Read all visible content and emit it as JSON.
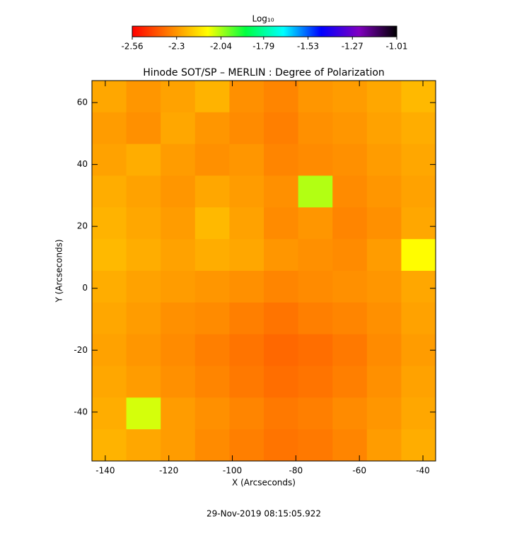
{
  "chart_data": {
    "type": "heatmap",
    "title": "Hinode SOT/SP – MERLIN : Degree of Polarization",
    "xlabel": "X (Arcseconds)",
    "ylabel": "Y (Arcseconds)",
    "footer": "29-Nov-2019 08:15:05.922",
    "colorbar_label": "Log₁₀",
    "colormap": [
      "#ff0000",
      "#ff8000",
      "#ffff00",
      "#00ff40",
      "#00ffff",
      "#0000ff",
      "#8000c0",
      "#000000"
    ],
    "clim": [
      -2.56,
      -1.01
    ],
    "cticks": [
      -2.56,
      -2.3,
      {
        "value": -2.04,
        "label": "-2.04"
      },
      -1.79,
      -1.53,
      -1.27,
      -1.01
    ],
    "xlim": [
      -144.2,
      -36
    ],
    "ylim": [
      -55.8,
      67.1
    ],
    "xticks": [
      -140,
      -120,
      -100,
      -80,
      -60,
      -40
    ],
    "yticks": [
      -40,
      -20,
      0,
      20,
      40,
      60
    ],
    "values": [
      [
        -2.27,
        -2.3,
        -2.28,
        -2.25,
        -2.31,
        -2.33,
        -2.3,
        -2.29,
        -2.27,
        -2.24
      ],
      [
        -2.29,
        -2.31,
        -2.27,
        -2.3,
        -2.32,
        -2.34,
        -2.31,
        -2.3,
        -2.28,
        -2.26
      ],
      [
        -2.28,
        -2.26,
        -2.29,
        -2.31,
        -2.3,
        -2.33,
        -2.32,
        -2.31,
        -2.29,
        -2.27
      ],
      [
        -2.26,
        -2.28,
        -2.3,
        -2.27,
        -2.29,
        -2.31,
        -2.05,
        -2.32,
        -2.3,
        -2.28
      ],
      [
        -2.25,
        -2.27,
        -2.29,
        -2.24,
        -2.28,
        -2.32,
        -2.3,
        -2.33,
        -2.31,
        -2.27
      ],
      [
        -2.24,
        -2.26,
        -2.28,
        -2.26,
        -2.27,
        -2.3,
        -2.31,
        -2.32,
        -2.29,
        -2.12
      ],
      [
        -2.26,
        -2.28,
        -2.29,
        -2.3,
        -2.31,
        -2.33,
        -2.32,
        -2.31,
        -2.3,
        -2.27
      ],
      [
        -2.27,
        -2.29,
        -2.31,
        -2.32,
        -2.34,
        -2.36,
        -2.34,
        -2.33,
        -2.31,
        -2.28
      ],
      [
        -2.28,
        -2.3,
        -2.32,
        -2.34,
        -2.36,
        -2.38,
        -2.37,
        -2.35,
        -2.32,
        -2.29
      ],
      [
        -2.27,
        -2.29,
        -2.31,
        -2.33,
        -2.35,
        -2.37,
        -2.36,
        -2.34,
        -2.31,
        -2.28
      ],
      [
        -2.26,
        -2.08,
        -2.29,
        -2.31,
        -2.33,
        -2.35,
        -2.34,
        -2.32,
        -2.3,
        -2.27
      ],
      [
        -2.25,
        -2.27,
        -2.29,
        -2.32,
        -2.34,
        -2.36,
        -2.35,
        -2.33,
        -2.29,
        -2.26
      ]
    ]
  }
}
